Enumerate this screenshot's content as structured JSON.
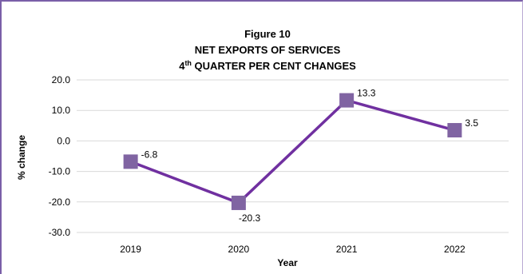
{
  "chart_data": {
    "type": "line",
    "title": "Figure 10",
    "subtitle_line1": "NET EXPORTS OF SERVICES",
    "subtitle_line2_prefix": "4",
    "subtitle_line2_sup": "th",
    "subtitle_line2_rest": " QUARTER PER CENT CHANGES",
    "xlabel": "Year",
    "ylabel": "% change",
    "categories": [
      "2019",
      "2020",
      "2021",
      "2022"
    ],
    "series": [
      {
        "values": [
          -6.8,
          -20.3,
          13.3,
          3.5
        ],
        "data_labels": [
          "-6.8",
          "-20.3",
          "13.3",
          "3.5"
        ],
        "color": "#7030a0",
        "marker_color": "#8064a2"
      }
    ],
    "yticks": [
      "20.0",
      "10.0",
      "0.0",
      "-10.0",
      "-20.0",
      "-30.0"
    ],
    "ytick_values": [
      20,
      10,
      0,
      -10,
      -20,
      -30
    ],
    "ylim": [
      -30,
      20
    ],
    "grid": true,
    "legend": "none"
  }
}
